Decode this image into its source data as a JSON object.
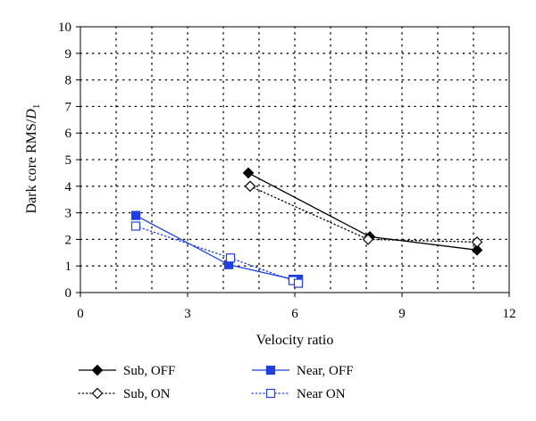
{
  "chart_data": {
    "type": "line",
    "xlabel": "Velocity ratio",
    "ylabel_main": "Dark core RMS/",
    "ylabel_italic": "D",
    "ylabel_sub": "1",
    "xlim": [
      0,
      12
    ],
    "ylim": [
      0,
      10
    ],
    "xticks": [
      0,
      3,
      6,
      9,
      12
    ],
    "yticks": [
      0,
      1,
      2,
      3,
      4,
      5,
      6,
      7,
      8,
      9,
      10
    ],
    "grid": true,
    "legend_position": "bottom",
    "series": [
      {
        "name": "Sub, OFF",
        "color": "#000000",
        "line": "solid",
        "marker": "diamond-filled",
        "points": [
          [
            4.7,
            4.5
          ],
          [
            8.1,
            2.1
          ],
          [
            11.1,
            1.6
          ]
        ]
      },
      {
        "name": "Sub, ON",
        "color": "#000000",
        "line": "dotted",
        "marker": "diamond-open",
        "points": [
          [
            4.75,
            4.0
          ],
          [
            8.05,
            2.0
          ],
          [
            11.1,
            1.9
          ]
        ]
      },
      {
        "name": "Near, OFF",
        "color": "#1f3fe0",
        "line": "solid",
        "marker": "square-filled",
        "points": [
          [
            1.55,
            2.9
          ],
          [
            4.15,
            1.05
          ],
          [
            5.95,
            0.5
          ],
          [
            6.1,
            0.5
          ]
        ]
      },
      {
        "name": "Near ON",
        "color": "#1f3fe0",
        "line": "dotted",
        "marker": "square-open",
        "points": [
          [
            1.55,
            2.5
          ],
          [
            4.2,
            1.3
          ],
          [
            5.95,
            0.45
          ],
          [
            6.1,
            0.35
          ]
        ]
      }
    ]
  }
}
